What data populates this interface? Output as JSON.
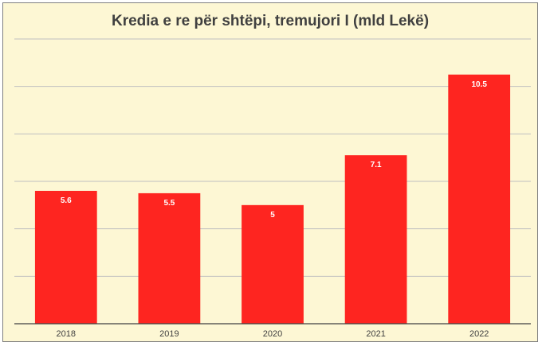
{
  "chart_data": {
    "type": "bar",
    "title": "Kredia e re për shtëpi, tremujori I (mld Lekë)",
    "categories": [
      "2018",
      "2019",
      "2020",
      "2021",
      "2022"
    ],
    "values": [
      5.6,
      5.5,
      5,
      7.1,
      10.5
    ],
    "data_labels": [
      "5.6",
      "5.5",
      "5",
      "7.1",
      "10.5"
    ],
    "xlabel": "",
    "ylabel": "",
    "ylim": [
      0,
      12
    ],
    "y_gridline_step": 2,
    "y_tick_labels_shown": false,
    "grid": true,
    "legend": "none",
    "colors": {
      "bar": "#fe2520",
      "background": "#fdf7d4",
      "gridline": "#bfbfbf",
      "axis": "#404040"
    }
  }
}
